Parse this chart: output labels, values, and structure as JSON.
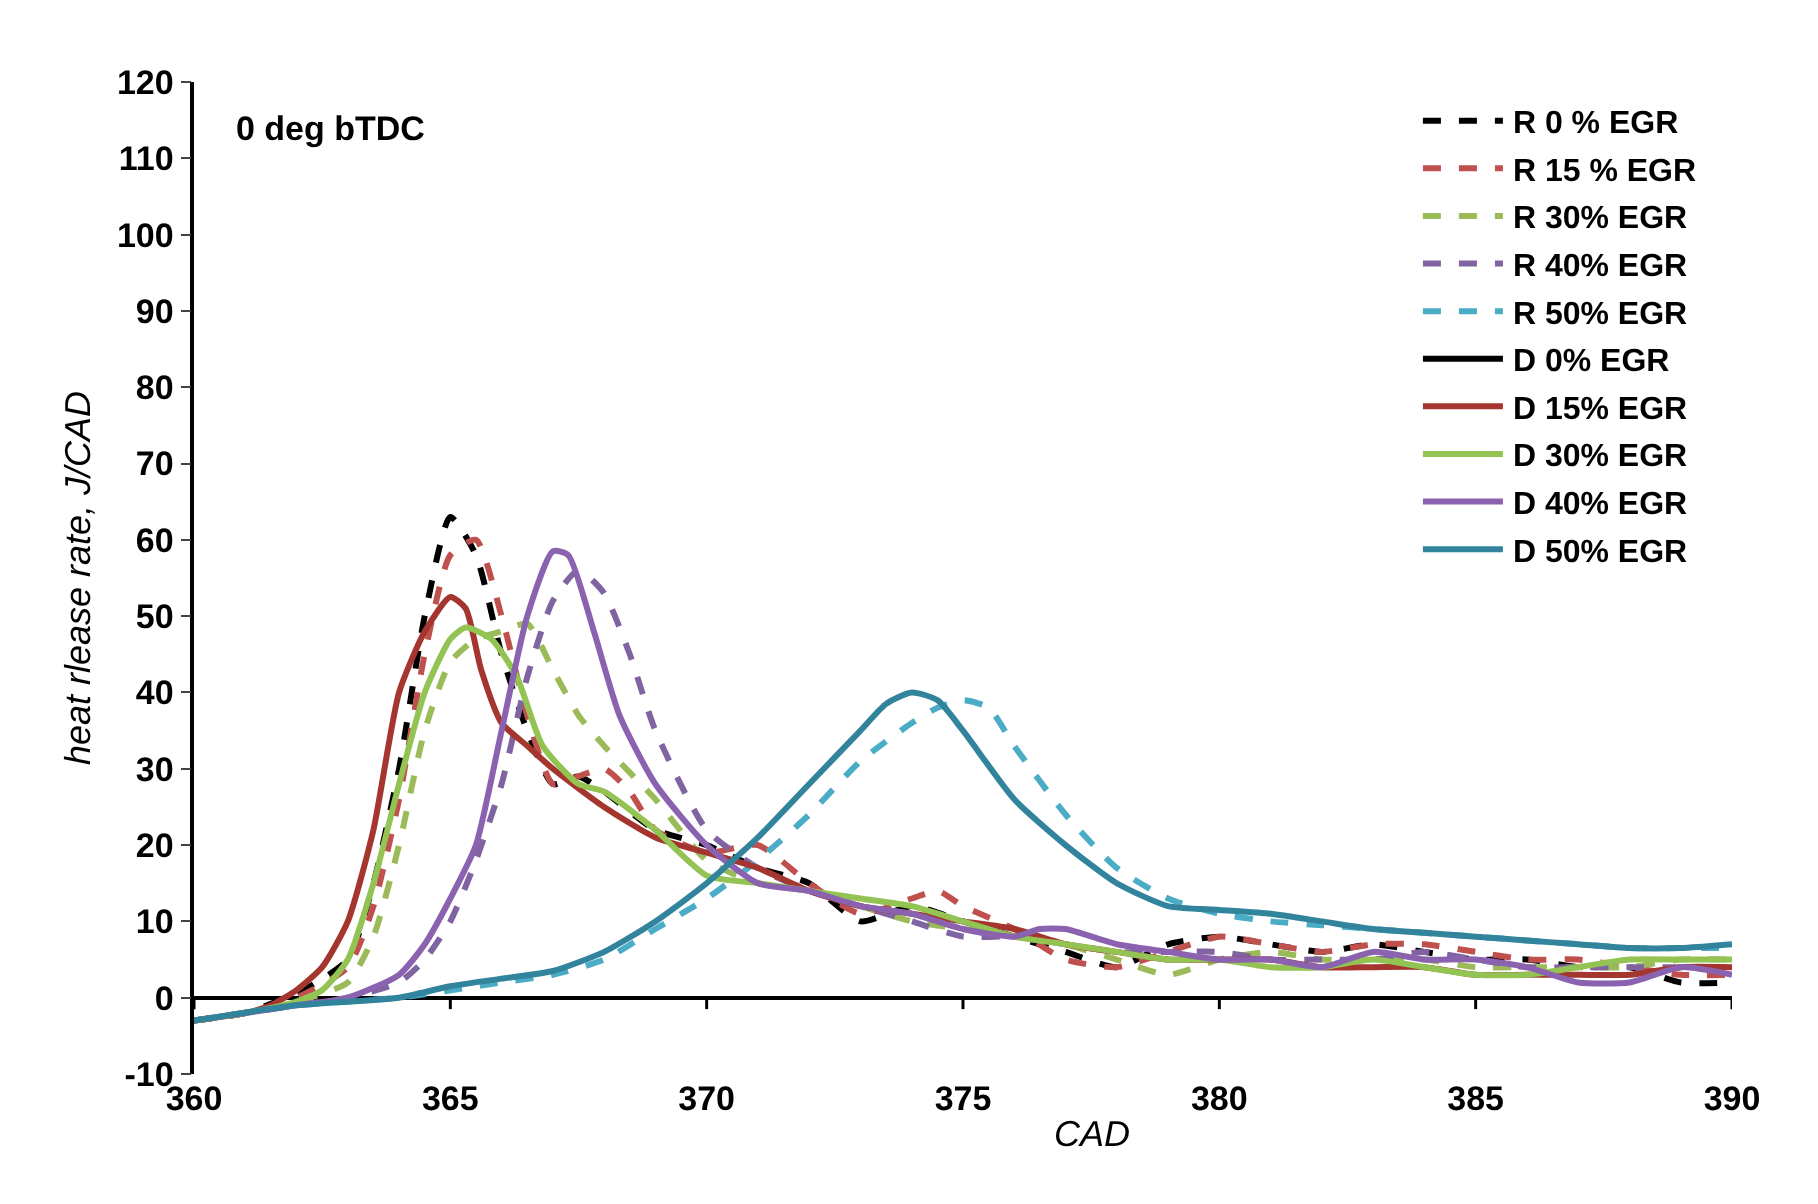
{
  "chart_data": {
    "type": "line",
    "xlabel": "CAD",
    "ylabel": "heat rlease rate, J/CAD",
    "annotations": [
      "0 deg bTDC"
    ],
    "xlim": [
      360,
      390
    ],
    "xticks": [
      360,
      365,
      370,
      375,
      380,
      385,
      390
    ],
    "ylim": [
      -10,
      120
    ],
    "yticks": [
      -10,
      0,
      10,
      20,
      30,
      40,
      50,
      60,
      70,
      80,
      90,
      100,
      110,
      120
    ],
    "legend": "top right",
    "marker": "none",
    "series": [
      {
        "name": "R 0 % EGR",
        "color": "#000000",
        "line_style": "dashed",
        "x": [
          360,
          361,
          361.8,
          362,
          363,
          363.5,
          364,
          364.5,
          365,
          365.5,
          366,
          366.5,
          367,
          367.5,
          368,
          369,
          370,
          371,
          372,
          373,
          374,
          375,
          376,
          377,
          378,
          379,
          380,
          381,
          382,
          383,
          384,
          385,
          386,
          387,
          388,
          389,
          390
        ],
        "values": [
          -3,
          -2,
          0,
          0.5,
          5,
          15,
          30,
          50,
          63,
          58,
          45,
          35,
          28,
          29,
          27,
          22,
          20,
          17,
          15,
          10,
          12,
          10,
          8,
          6,
          4,
          7,
          8,
          7,
          6,
          7,
          6,
          5,
          5,
          4,
          4,
          2,
          2
        ]
      },
      {
        "name": "R 15 % EGR",
        "color": "#c0504d",
        "line_style": "dashed",
        "x": [
          360,
          361,
          362,
          363,
          363.5,
          364,
          364.5,
          365,
          365.5,
          366,
          366.5,
          367,
          367.5,
          368,
          368.5,
          369,
          370,
          371,
          372,
          373,
          374,
          374.5,
          375,
          376,
          377,
          378,
          379,
          380,
          381,
          382,
          383,
          384,
          385,
          386,
          387,
          388,
          389,
          390
        ],
        "values": [
          -3,
          -2,
          0,
          4,
          12,
          26,
          45,
          58,
          60,
          50,
          37,
          28,
          29,
          30,
          27,
          22,
          19,
          20,
          15,
          11,
          13,
          14,
          12,
          9,
          5,
          4,
          6,
          8,
          7,
          6,
          7,
          7,
          6,
          5,
          5,
          4,
          3,
          3
        ]
      },
      {
        "name": "R 30% EGR",
        "color": "#9bbb59",
        "line_style": "dashed",
        "x": [
          360,
          361,
          362,
          363,
          363.5,
          364,
          364.5,
          365,
          365.5,
          366,
          366.5,
          367,
          367.5,
          368,
          369,
          370,
          371,
          372,
          373,
          374,
          375,
          376,
          377,
          378,
          379,
          380,
          381,
          382,
          383,
          384,
          385,
          386,
          387,
          388,
          389,
          390
        ],
        "values": [
          -3,
          -2,
          -0.5,
          2,
          8,
          20,
          35,
          44,
          47,
          48,
          49,
          43,
          37,
          33,
          26,
          18,
          15,
          14,
          12,
          10,
          9,
          8,
          7,
          5,
          3,
          5,
          6,
          5,
          5,
          5,
          4,
          4,
          4,
          4,
          5,
          5
        ]
      },
      {
        "name": "R 40% EGR",
        "color": "#8064a2",
        "line_style": "dashed",
        "x": [
          360,
          362,
          363,
          364,
          364.5,
          365,
          365.5,
          366,
          366.5,
          367,
          367.5,
          368,
          368.5,
          369,
          370,
          371,
          372,
          373,
          374,
          375,
          376,
          377,
          378,
          379,
          380,
          381,
          382,
          383,
          384,
          385,
          386,
          387,
          388,
          389,
          390
        ],
        "values": [
          -3,
          -1,
          0,
          2,
          5,
          10,
          18,
          28,
          42,
          52,
          56,
          53,
          45,
          35,
          22,
          17,
          14,
          12,
          10,
          8,
          8,
          7,
          6,
          6,
          6,
          5,
          5,
          5,
          6,
          5,
          4,
          4,
          4,
          4,
          4
        ]
      },
      {
        "name": "R 50% EGR",
        "color": "#4bacc6",
        "line_style": "dashed",
        "x": [
          360,
          362,
          364,
          366,
          367,
          368,
          369,
          370,
          371,
          372,
          373,
          374,
          374.5,
          375,
          375.5,
          376,
          377,
          378,
          379,
          380,
          381,
          382,
          383,
          384,
          385,
          386,
          387,
          388,
          389,
          390
        ],
        "values": [
          -3,
          -1,
          0,
          2,
          3,
          5,
          9,
          13,
          18,
          24,
          31,
          36,
          38,
          39,
          38,
          33,
          24,
          17,
          13,
          11,
          10,
          9.5,
          9,
          8.5,
          8,
          7.5,
          7,
          6.5,
          6.5,
          6.5
        ]
      },
      {
        "name": "D 0% EGR",
        "color": "#000000",
        "line_style": "solid",
        "values": [
          null
        ]
      },
      {
        "name": "D 15% EGR",
        "color": "#a5362f",
        "line_style": "solid",
        "x": [
          360,
          361,
          361.5,
          362,
          362.5,
          363,
          363.5,
          364,
          364.5,
          365,
          365.3,
          365.6,
          366,
          366.5,
          367,
          368,
          369,
          370,
          371,
          372,
          373,
          374,
          375,
          376,
          377,
          378,
          379,
          380,
          381,
          382,
          383,
          384,
          385,
          386,
          387,
          388,
          389,
          390
        ],
        "values": [
          -3,
          -2,
          -1,
          1,
          4,
          10,
          22,
          40,
          48,
          52.5,
          51,
          43,
          36,
          33,
          30,
          25,
          21,
          19,
          17,
          14,
          12,
          11,
          10,
          9,
          7,
          6,
          5,
          5,
          5,
          4,
          4,
          4,
          3,
          3,
          3,
          3,
          4,
          4
        ]
      },
      {
        "name": "D 30% EGR",
        "color": "#92c353",
        "line_style": "solid",
        "x": [
          360,
          361,
          362,
          362.5,
          363,
          363.5,
          364,
          364.5,
          365,
          365.3,
          365.8,
          366.3,
          366.8,
          367.5,
          368,
          369,
          370,
          371,
          372,
          373,
          374,
          375,
          376,
          377,
          378,
          379,
          380,
          381,
          382,
          383,
          384,
          385,
          386,
          387,
          388,
          389,
          390
        ],
        "values": [
          -3,
          -2,
          -0.5,
          1,
          5,
          15,
          28,
          40,
          47,
          48.5,
          47,
          42,
          33,
          28,
          27,
          22,
          16,
          15,
          14,
          13,
          12,
          10,
          8,
          7,
          6,
          5,
          5,
          4,
          4,
          5,
          4,
          3,
          3,
          4,
          5,
          5,
          5
        ]
      },
      {
        "name": "D 40% EGR",
        "color": "#8a62b0",
        "line_style": "solid",
        "x": [
          360,
          362,
          363,
          364,
          364.5,
          365,
          365.5,
          366,
          366.5,
          367,
          367.3,
          367.8,
          368.3,
          369,
          370,
          371,
          372,
          373,
          374,
          375,
          376,
          376.5,
          377,
          378,
          379,
          380,
          381,
          382,
          383,
          384,
          385,
          386,
          387,
          388,
          389,
          390
        ],
        "values": [
          -3,
          -1,
          0,
          3,
          7,
          13,
          20,
          35,
          50,
          58.5,
          58,
          48,
          37,
          28,
          20,
          15,
          14,
          12,
          11,
          9,
          8,
          9,
          9,
          7,
          6,
          5,
          5,
          4,
          6,
          5,
          5,
          4,
          2,
          2,
          4,
          3
        ]
      },
      {
        "name": "D 50% EGR",
        "color": "#31849b",
        "line_style": "solid",
        "x": [
          360,
          362,
          364,
          365,
          366,
          367,
          368,
          369,
          370,
          371,
          372,
          373,
          373.5,
          374,
          374.5,
          375,
          376,
          377,
          378,
          379,
          380,
          381,
          382,
          383,
          384,
          385,
          386,
          387,
          388,
          389,
          390
        ],
        "values": [
          -3,
          -1,
          0,
          1.5,
          2.5,
          3.5,
          6,
          10,
          15,
          21,
          28,
          35,
          38.5,
          40,
          39,
          35,
          26,
          20,
          15,
          12,
          11.5,
          11,
          10,
          9,
          8.5,
          8,
          7.5,
          7,
          6.5,
          6.5,
          7
        ]
      }
    ]
  }
}
